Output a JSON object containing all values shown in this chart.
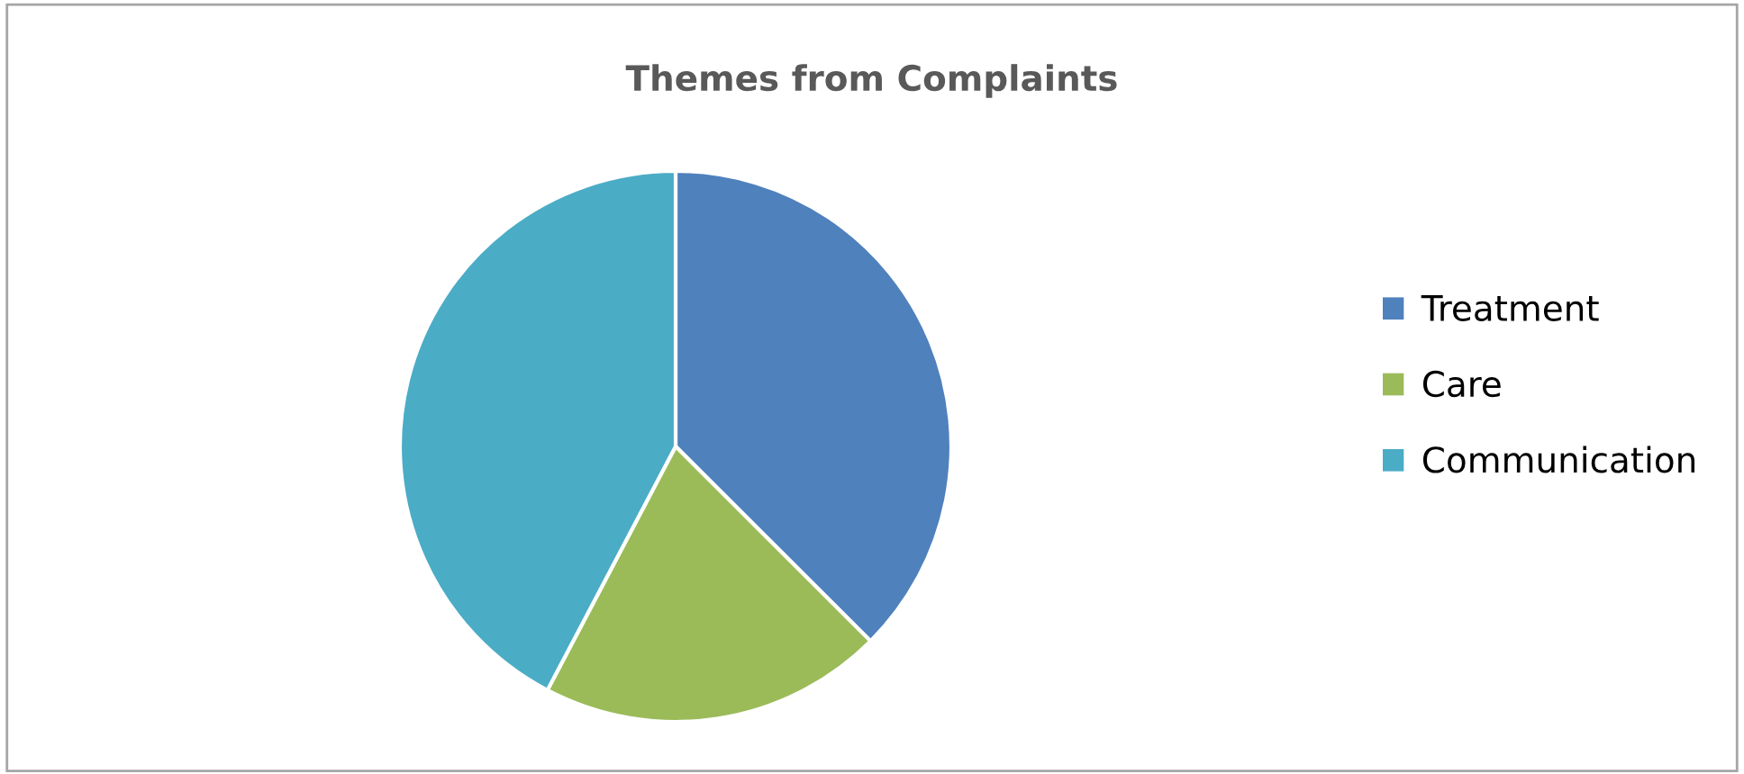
{
  "chart_data": {
    "type": "pie",
    "title": "Themes from Complaints",
    "categories": [
      "Treatment",
      "Care",
      "Communication"
    ],
    "values": [
      37.5,
      20.2,
      42.3
    ],
    "colors": [
      "#4f81bd",
      "#9bbb59",
      "#4bacc6"
    ],
    "legend": "right"
  }
}
